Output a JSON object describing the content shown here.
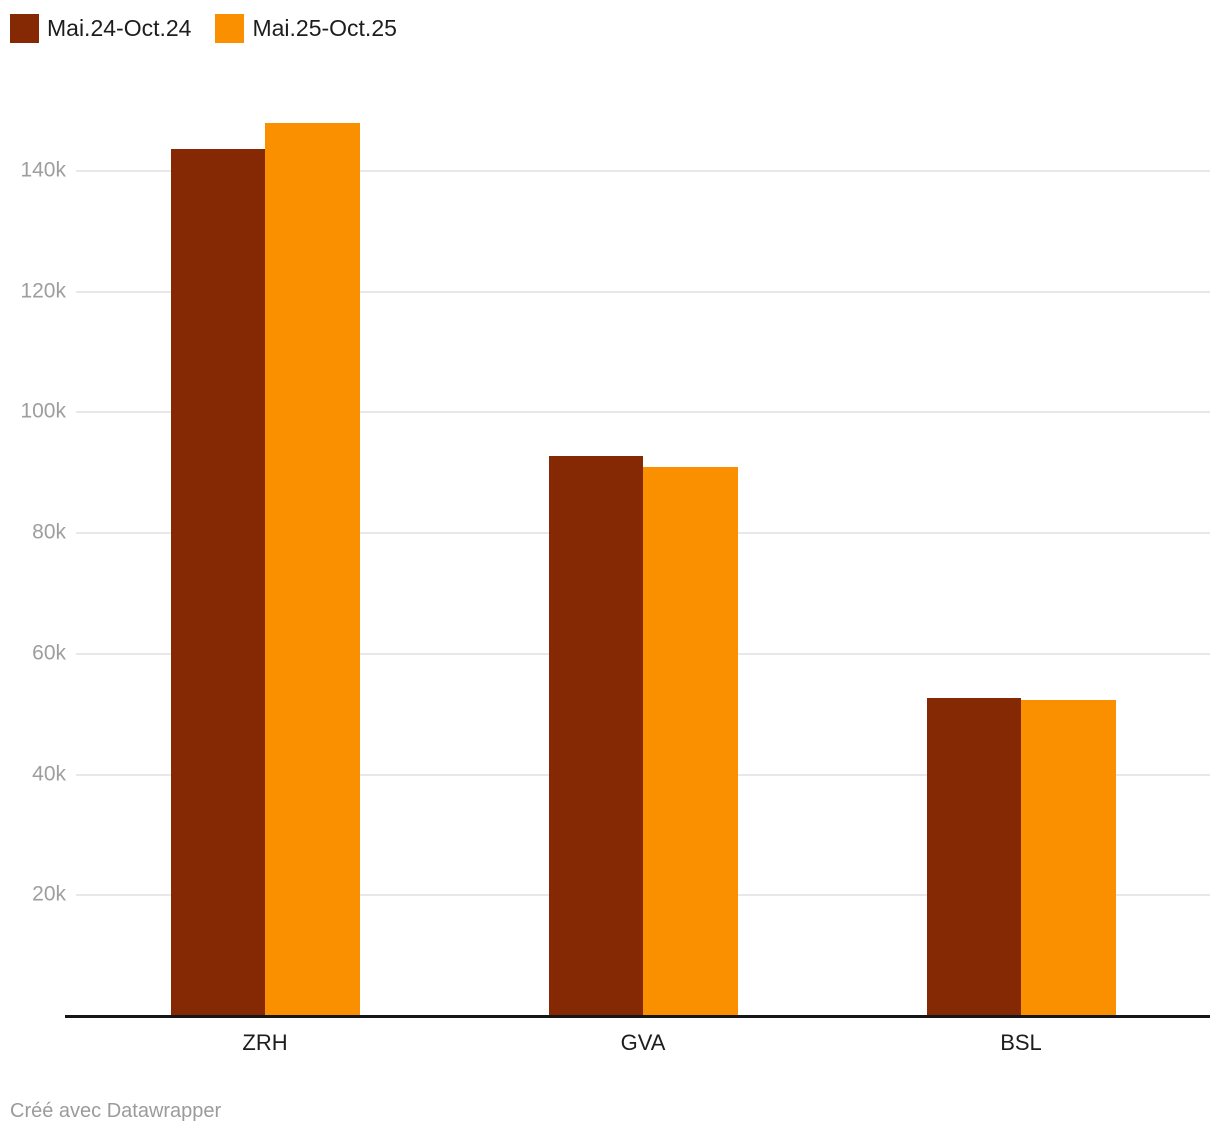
{
  "legend": {
    "items": [
      {
        "label": "Mai.24-Oct.24",
        "color": "#842904"
      },
      {
        "label": "Mai.25-Oct.25",
        "color": "#fa8f00"
      }
    ]
  },
  "footer": {
    "credit": "Créé avec Datawrapper"
  },
  "colors": {
    "series_1": "#842904",
    "series_2": "#fa8f00",
    "gridline": "#e8e8e8",
    "axis_line": "#161616",
    "tick_text": "#9e9e9e",
    "category_text": "#1d1d1d",
    "credit_text": "#9b9b9b"
  },
  "chart_data": {
    "type": "bar",
    "categories": [
      "ZRH",
      "GVA",
      "BSL"
    ],
    "series": [
      {
        "name": "Mai.24-Oct.24",
        "color": "#842904",
        "values": [
          143700,
          92700,
          52700
        ]
      },
      {
        "name": "Mai.25-Oct.25",
        "color": "#fa8f00",
        "values": [
          147900,
          90900,
          52400
        ]
      }
    ],
    "title": "",
    "xlabel": "",
    "ylabel": "",
    "ylim": [
      0,
      156000
    ],
    "yticks": [
      20000,
      40000,
      60000,
      80000,
      100000,
      120000,
      140000
    ],
    "ytick_labels": [
      "20k",
      "40k",
      "60k",
      "80k",
      "100k",
      "120k",
      "140k"
    ],
    "grid": true,
    "legend_position": "top-left"
  }
}
